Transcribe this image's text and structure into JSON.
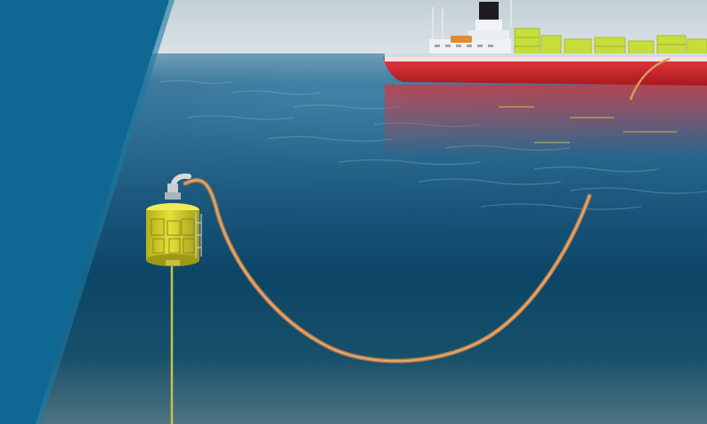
{
  "scene": {
    "subject": "offshore-riser-and-subsurface-buoy",
    "elements": [
      "sky",
      "sea-surface",
      "underwater",
      "fpso-vessel",
      "flexible-riser",
      "subsurface-buoy",
      "tether-line",
      "blue-panel"
    ]
  },
  "colors": {
    "sky": "#c9d3d9",
    "sea_surface": "#2f6d91",
    "deep_water": "#0b3f5f",
    "seabed_haze": "#5f7e8a",
    "hull_red": "#d22a2f",
    "deck_white": "#e8eef2",
    "topsides_yellow": "#cbe13a",
    "riser": "#c98d5b",
    "buoy_yellow": "#d8d52a",
    "panel_blue": "#0f6893"
  }
}
